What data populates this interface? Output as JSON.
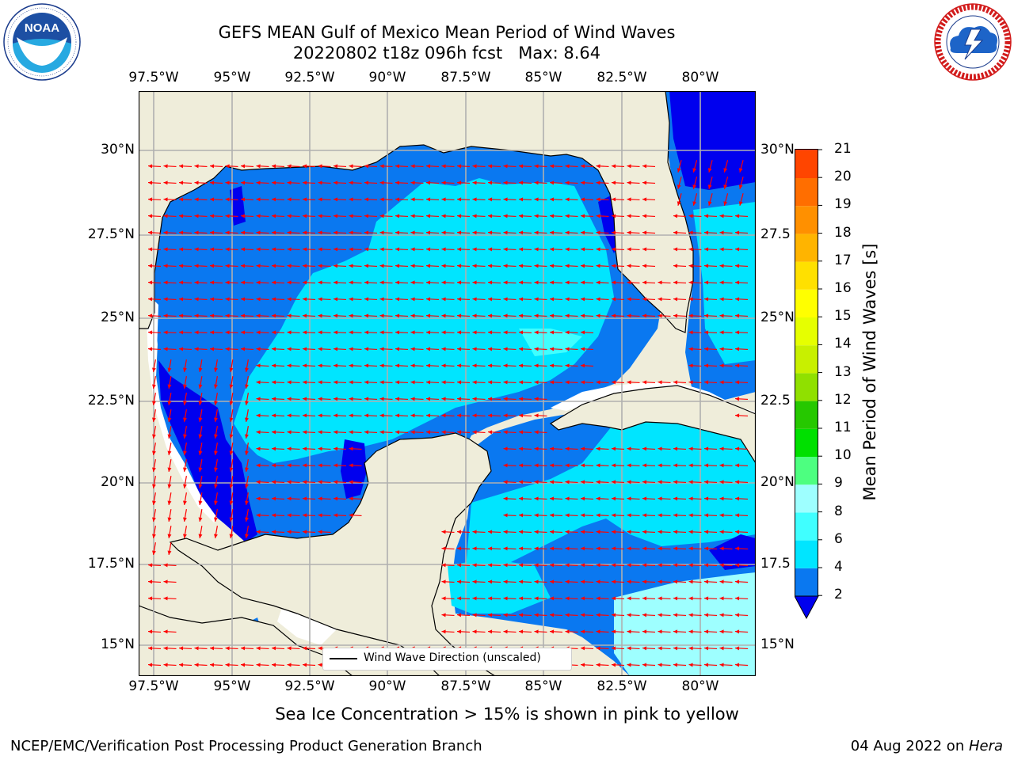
{
  "title": {
    "line1": "GEFS MEAN Gulf of Mexico Mean Period of Wind Waves",
    "line2": "20220802 t18z 096h fcst   Max: 8.64"
  },
  "map": {
    "longitude_ticks": [
      "97.5°W",
      "95°W",
      "92.5°W",
      "90°W",
      "87.5°W",
      "85°W",
      "82.5°W",
      "80°W"
    ],
    "latitude_ticks_left": [
      "30°N",
      "27.5°N",
      "25°N",
      "22.5°N",
      "20°N",
      "17.5°N",
      "15°N"
    ],
    "latitude_ticks_right": [
      "30°N",
      "27.5",
      "25°N",
      "22.5",
      "20°N",
      "17.5",
      "15°N"
    ],
    "land_color": "#efedda",
    "ocean_colors": {
      "lt2": "#0000ee",
      "2-4": "#0a78f0",
      "4-6": "#00e5ff",
      "6-8": "#40ffff",
      "8-9": "#9effff"
    },
    "arrow_color": "#ff0000",
    "legend_label": "Wind Wave Direction (unscaled)"
  },
  "colorbar": {
    "label": "Mean Period of Wind Waves [s]",
    "ticks": [
      "21",
      "20",
      "19",
      "18",
      "17",
      "16",
      "15",
      "14",
      "13",
      "12",
      "11",
      "10",
      "9",
      "8",
      "6",
      "4",
      "2"
    ],
    "colors": [
      "#0000ee",
      "#0a78f0",
      "#00e5ff",
      "#40ffff",
      "#9effff",
      "#4dff80",
      "#00e000",
      "#26c800",
      "#90e000",
      "#c8f000",
      "#e6ff00",
      "#ffff00",
      "#ffe000",
      "#ffb400",
      "#ff9000",
      "#ff6e00",
      "#ff4500",
      "#ff2000",
      "#ff0000"
    ]
  },
  "note": "Sea Ice Concentration > 15% is shown in pink to yellow",
  "footer": {
    "left": "NCEP/EMC/Verification Post Processing Product Generation Branch",
    "date": "04 Aug 2022 on ",
    "machine": "Hera"
  },
  "logos": {
    "left_text": "NOAA",
    "left_ring_text": "NATIONAL OCEANIC AND ATMOSPHERIC ADMINISTRATION · U.S. DEPARTMENT OF COMMERCE",
    "right_ring_text": "NATIONAL WEATHER SERVICE"
  }
}
